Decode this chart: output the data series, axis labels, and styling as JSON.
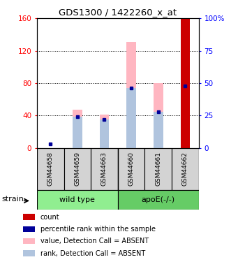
{
  "title": "GDS1300 / 1422260_x_at",
  "samples": [
    "GSM44658",
    "GSM44659",
    "GSM44663",
    "GSM44660",
    "GSM44661",
    "GSM44662"
  ],
  "bar_color_absent_value": "#ffb6c1",
  "bar_color_absent_rank": "#b0c4de",
  "bar_color_count": "#cc0000",
  "bar_color_rank_dot": "#000099",
  "ylim_left": [
    0,
    160
  ],
  "ylim_right": [
    0,
    100
  ],
  "yticks_left": [
    0,
    40,
    80,
    120,
    160
  ],
  "ytick_labels_left": [
    "0",
    "40",
    "80",
    "120",
    "160"
  ],
  "yticks_right": [
    0,
    25,
    50,
    75,
    100
  ],
  "ytick_labels_right": [
    "0",
    "25",
    "50",
    "75",
    "100%"
  ],
  "absent_value_heights": [
    0,
    47,
    41,
    131,
    80,
    0
  ],
  "absent_rank_pct": [
    0,
    24,
    22,
    46,
    28,
    0
  ],
  "rank_dot_pct": [
    3,
    24,
    22,
    46,
    28,
    48
  ],
  "has_absent_bar": [
    false,
    true,
    true,
    true,
    true,
    false
  ],
  "has_count_bar": [
    false,
    false,
    false,
    false,
    false,
    true
  ],
  "count_bar_height": 160,
  "bar_width": 0.35,
  "group_gray": "#d3d3d3",
  "group_green1": "#90ee90",
  "group_green2": "#66cc66",
  "legend_items": [
    [
      "#cc0000",
      "count"
    ],
    [
      "#000099",
      "percentile rank within the sample"
    ],
    [
      "#ffb6c1",
      "value, Detection Call = ABSENT"
    ],
    [
      "#b0c4de",
      "rank, Detection Call = ABSENT"
    ]
  ]
}
